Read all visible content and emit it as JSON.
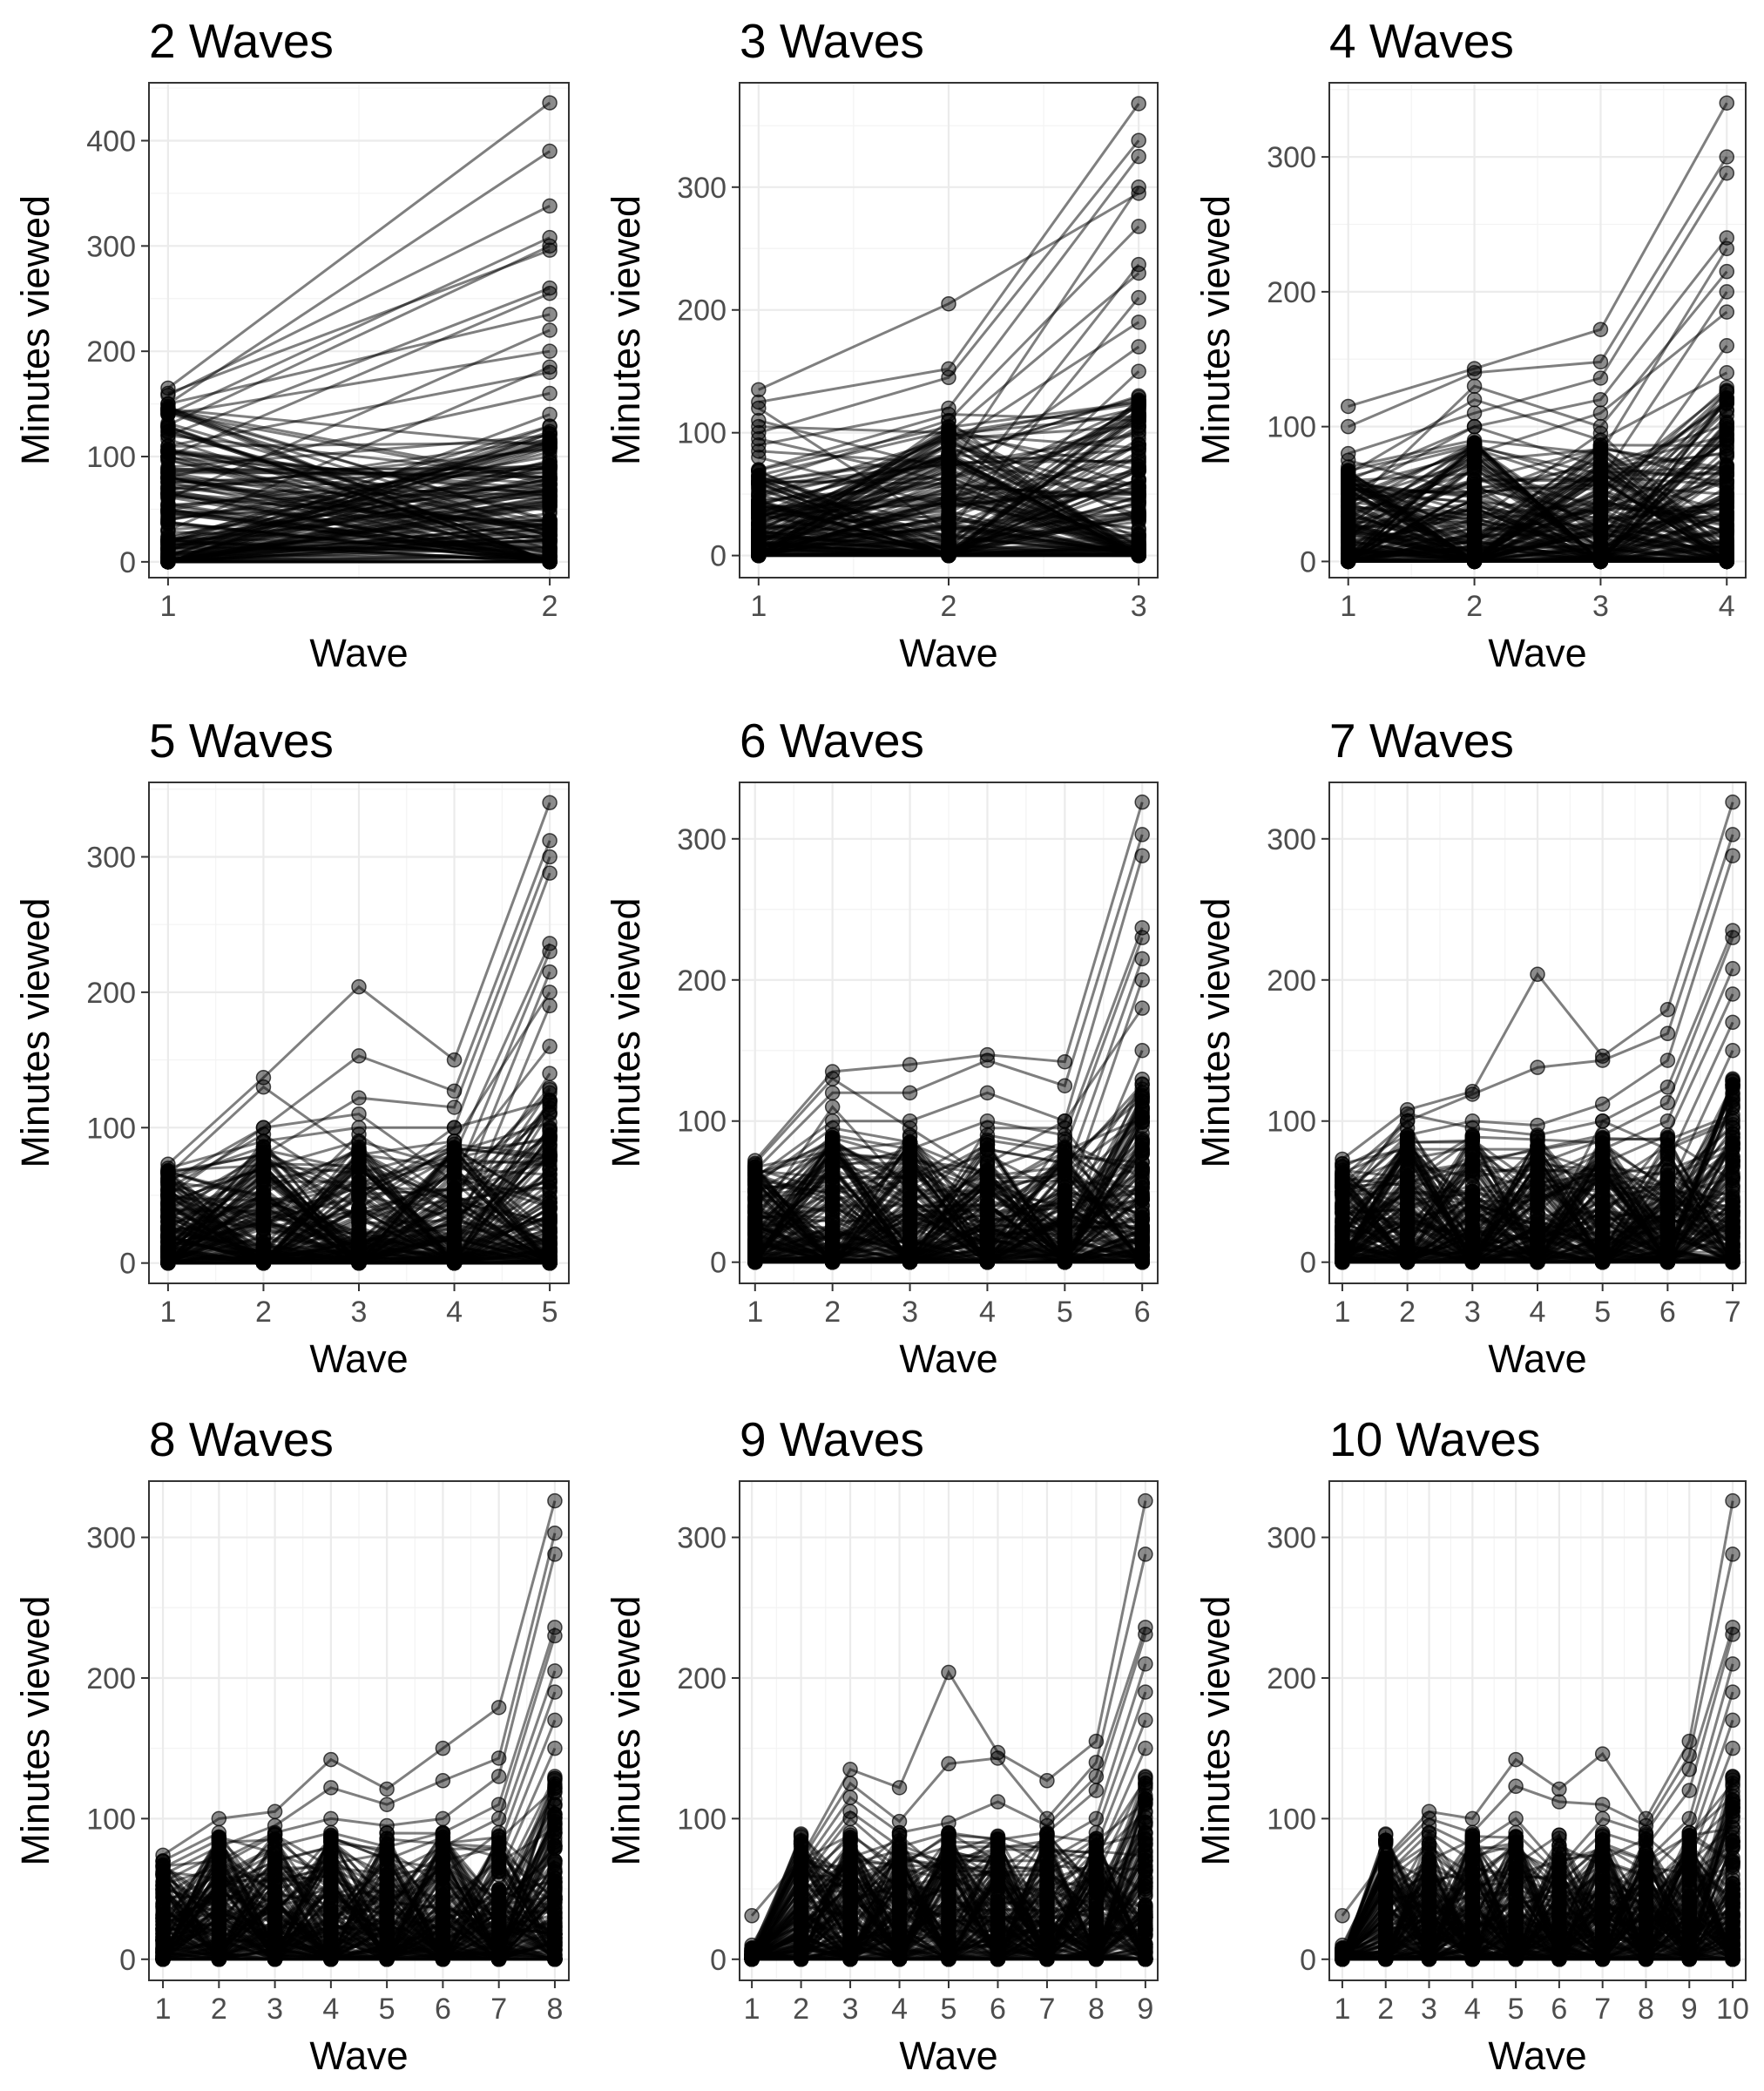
{
  "y_axis_label": "Minutes viewed",
  "x_axis_label": "Wave",
  "chart_data": [
    {
      "type": "line",
      "title": "2 Waves",
      "xlabel": "Wave",
      "ylabel": "Minutes viewed",
      "x": [
        1,
        2
      ],
      "xlim": [
        0.95,
        2.05
      ],
      "ylim": [
        -15,
        455
      ],
      "y_ticks": [
        0,
        100,
        200,
        300,
        400
      ],
      "grid": true,
      "series_peak_values": [
        [
          165,
          436
        ],
        [
          150,
          390
        ],
        [
          158,
          338
        ],
        [
          140,
          308
        ],
        [
          130,
          300
        ],
        [
          160,
          296
        ],
        [
          120,
          260
        ],
        [
          100,
          255
        ],
        [
          150,
          235
        ],
        [
          60,
          220
        ],
        [
          140,
          200
        ],
        [
          30,
          185
        ],
        [
          110,
          180
        ],
        [
          80,
          160
        ],
        [
          5,
          140
        ],
        [
          90,
          120
        ],
        [
          40,
          100
        ],
        [
          120,
          80
        ],
        [
          70,
          60
        ],
        [
          20,
          40
        ],
        [
          100,
          20
        ],
        [
          50,
          5
        ],
        [
          0,
          90
        ],
        [
          145,
          110
        ]
      ]
    },
    {
      "type": "line",
      "title": "3 Waves",
      "xlabel": "Wave",
      "ylabel": "Minutes viewed",
      "x": [
        1,
        2,
        3
      ],
      "xlim": [
        0.9,
        3.1
      ],
      "ylim": [
        -18,
        385
      ],
      "y_ticks": [
        0,
        100,
        200,
        300
      ],
      "grid": true,
      "series_peak_values": [
        [
          135,
          205,
          295
        ],
        [
          125,
          152,
          368
        ],
        [
          100,
          145,
          338
        ],
        [
          90,
          120,
          325
        ],
        [
          110,
          70,
          300
        ],
        [
          60,
          110,
          268
        ],
        [
          80,
          40,
          237
        ],
        [
          30,
          100,
          230
        ],
        [
          120,
          20,
          210
        ],
        [
          20,
          90,
          190
        ],
        [
          95,
          60,
          170
        ],
        [
          50,
          5,
          150
        ],
        [
          0,
          80,
          130
        ],
        [
          70,
          115,
          110
        ],
        [
          40,
          30,
          90
        ],
        [
          105,
          100,
          70
        ],
        [
          15,
          55,
          50
        ],
        [
          65,
          10,
          30
        ],
        [
          85,
          75,
          10
        ],
        [
          5,
          0,
          0
        ]
      ]
    },
    {
      "type": "line",
      "title": "4 Waves",
      "xlabel": "Wave",
      "ylabel": "Minutes viewed",
      "x": [
        1,
        2,
        3,
        4
      ],
      "xlim": [
        0.85,
        4.15
      ],
      "ylim": [
        -12,
        355
      ],
      "y_ticks": [
        0,
        100,
        200,
        300
      ],
      "grid": true,
      "series_peak_values": [
        [
          115,
          143,
          172,
          340
        ],
        [
          100,
          140,
          148,
          300
        ],
        [
          80,
          110,
          136,
          288
        ],
        [
          60,
          100,
          120,
          240
        ],
        [
          70,
          90,
          80,
          232
        ],
        [
          40,
          130,
          100,
          215
        ],
        [
          20,
          60,
          60,
          200
        ],
        [
          55,
          80,
          110,
          185
        ],
        [
          10,
          40,
          30,
          160
        ],
        [
          65,
          120,
          90,
          140
        ],
        [
          30,
          20,
          50,
          120
        ],
        [
          0,
          70,
          10,
          100
        ],
        [
          50,
          100,
          70,
          80
        ],
        [
          5,
          10,
          40,
          60
        ],
        [
          75,
          50,
          20,
          40
        ],
        [
          45,
          85,
          65,
          20
        ],
        [
          25,
          30,
          95,
          5
        ],
        [
          60,
          65,
          5,
          0
        ]
      ]
    },
    {
      "type": "line",
      "title": "5 Waves",
      "xlabel": "Wave",
      "ylabel": "Minutes viewed",
      "x": [
        1,
        2,
        3,
        4,
        5
      ],
      "xlim": [
        0.8,
        5.2
      ],
      "ylim": [
        -15,
        355
      ],
      "y_ticks": [
        0,
        100,
        200,
        300
      ],
      "grid": true,
      "series_peak_values": [
        [
          73,
          137,
          204,
          150,
          340
        ],
        [
          60,
          100,
          153,
          127,
          312
        ],
        [
          40,
          80,
          122,
          115,
          300
        ],
        [
          70,
          90,
          100,
          100,
          288
        ],
        [
          10,
          60,
          60,
          80,
          236
        ],
        [
          50,
          100,
          110,
          60,
          230
        ],
        [
          30,
          40,
          20,
          40,
          215
        ],
        [
          65,
          130,
          80,
          90,
          200
        ],
        [
          0,
          20,
          40,
          20,
          190
        ],
        [
          45,
          70,
          90,
          70,
          160
        ],
        [
          20,
          50,
          10,
          30,
          140
        ],
        [
          55,
          95,
          50,
          100,
          120
        ],
        [
          35,
          10,
          70,
          10,
          100
        ],
        [
          5,
          85,
          30,
          55,
          80
        ],
        [
          62,
          25,
          95,
          45,
          60
        ],
        [
          15,
          65,
          5,
          85,
          40
        ],
        [
          68,
          45,
          60,
          5,
          20
        ],
        [
          25,
          5,
          35,
          65,
          5
        ]
      ]
    },
    {
      "type": "line",
      "title": "6 Waves",
      "xlabel": "Wave",
      "ylabel": "Minutes viewed",
      "x": [
        1,
        2,
        3,
        4,
        5,
        6
      ],
      "xlim": [
        0.8,
        6.2
      ],
      "ylim": [
        -15,
        340
      ],
      "y_ticks": [
        0,
        100,
        200,
        300
      ],
      "grid": true,
      "series_peak_values": [
        [
          72,
          135,
          140,
          147,
          142,
          326
        ],
        [
          65,
          120,
          120,
          143,
          125,
          303
        ],
        [
          60,
          100,
          100,
          120,
          100,
          288
        ],
        [
          40,
          90,
          80,
          100,
          90,
          237
        ],
        [
          20,
          60,
          60,
          90,
          80,
          230
        ],
        [
          70,
          130,
          95,
          60,
          60,
          215
        ],
        [
          0,
          40,
          40,
          40,
          40,
          200
        ],
        [
          50,
          80,
          20,
          70,
          100,
          180
        ],
        [
          10,
          20,
          90,
          20,
          20,
          150
        ],
        [
          30,
          110,
          50,
          80,
          70,
          120
        ],
        [
          66,
          50,
          10,
          10,
          50,
          100
        ],
        [
          45,
          70,
          70,
          50,
          10,
          80
        ],
        [
          5,
          10,
          30,
          65,
          85,
          60
        ],
        [
          55,
          95,
          85,
          30,
          30,
          40
        ],
        [
          25,
          30,
          5,
          95,
          95,
          20
        ],
        [
          62,
          85,
          45,
          5,
          5,
          5
        ]
      ]
    },
    {
      "type": "line",
      "title": "7 Waves",
      "xlabel": "Wave",
      "ylabel": "Minutes viewed",
      "x": [
        1,
        2,
        3,
        4,
        5,
        6,
        7
      ],
      "xlim": [
        0.8,
        7.2
      ],
      "ylim": [
        -15,
        340
      ],
      "y_ticks": [
        0,
        100,
        200,
        300
      ],
      "grid": true,
      "series_peak_values": [
        [
          73,
          108,
          121,
          204,
          146,
          179,
          326
        ],
        [
          60,
          100,
          119,
          138,
          143,
          162,
          303
        ],
        [
          45,
          90,
          100,
          97,
          112,
          143,
          288
        ],
        [
          40,
          105,
          95,
          90,
          100,
          124,
          235
        ],
        [
          20,
          80,
          80,
          80,
          90,
          113,
          230
        ],
        [
          65,
          60,
          70,
          60,
          80,
          100,
          208
        ],
        [
          10,
          40,
          50,
          40,
          70,
          90,
          190
        ],
        [
          55,
          95,
          30,
          50,
          60,
          70,
          170
        ],
        [
          0,
          20,
          90,
          20,
          40,
          50,
          150
        ],
        [
          30,
          70,
          60,
          70,
          20,
          30,
          120
        ],
        [
          50,
          100,
          10,
          10,
          100,
          80,
          100
        ],
        [
          5,
          50,
          40,
          30,
          10,
          60,
          80
        ],
        [
          62,
          30,
          20,
          55,
          50,
          10,
          60
        ],
        [
          25,
          85,
          85,
          5,
          30,
          40,
          40
        ],
        [
          68,
          10,
          5,
          35,
          5,
          20,
          20
        ],
        [
          15,
          5,
          65,
          65,
          65,
          5,
          5
        ]
      ]
    },
    {
      "type": "line",
      "title": "8 Waves",
      "xlabel": "Wave",
      "ylabel": "Minutes viewed",
      "x": [
        1,
        2,
        3,
        4,
        5,
        6,
        7,
        8
      ],
      "xlim": [
        0.75,
        8.25
      ],
      "ylim": [
        -15,
        340
      ],
      "y_ticks": [
        0,
        100,
        200,
        300
      ],
      "grid": true,
      "series_peak_values": [
        [
          74,
          100,
          105,
          142,
          121,
          150,
          179,
          326
        ],
        [
          60,
          80,
          95,
          122,
          110,
          127,
          143,
          303
        ],
        [
          45,
          70,
          90,
          100,
          95,
          100,
          130,
          288
        ],
        [
          40,
          60,
          80,
          90,
          80,
          90,
          110,
          236
        ],
        [
          20,
          50,
          70,
          80,
          60,
          80,
          100,
          230
        ],
        [
          10,
          40,
          60,
          70,
          50,
          60,
          90,
          205
        ],
        [
          65,
          85,
          50,
          60,
          40,
          70,
          80,
          190
        ],
        [
          0,
          30,
          40,
          50,
          30,
          40,
          70,
          170
        ],
        [
          55,
          75,
          20,
          40,
          20,
          30,
          60,
          150
        ],
        [
          30,
          20,
          85,
          30,
          10,
          20,
          50,
          130
        ],
        [
          70,
          90,
          30,
          10,
          65,
          10,
          40,
          110
        ],
        [
          5,
          60,
          10,
          20,
          5,
          50,
          30,
          90
        ],
        [
          50,
          10,
          65,
          65,
          45,
          5,
          20,
          70
        ],
        [
          25,
          45,
          5,
          5,
          25,
          35,
          10,
          50
        ],
        [
          62,
          25,
          45,
          45,
          60,
          65,
          5,
          30
        ],
        [
          15,
          5,
          25,
          25,
          15,
          15,
          65,
          10
        ]
      ]
    },
    {
      "type": "line",
      "title": "9 Waves",
      "xlabel": "Wave",
      "ylabel": "Minutes viewed",
      "x": [
        1,
        2,
        3,
        4,
        5,
        6,
        7,
        8,
        9
      ],
      "xlim": [
        0.75,
        9.25
      ],
      "ylim": [
        -15,
        340
      ],
      "y_ticks": [
        0,
        100,
        200,
        300
      ],
      "grid": true,
      "series_peak_values": [
        [
          31,
          72,
          135,
          122,
          204,
          147,
          127,
          155,
          326
        ],
        [
          10,
          70,
          125,
          98,
          139,
          143,
          100,
          140,
          288
        ],
        [
          5,
          65,
          115,
          90,
          97,
          112,
          95,
          130,
          236
        ],
        [
          0,
          60,
          105,
          80,
          90,
          85,
          90,
          120,
          231
        ],
        [
          0,
          55,
          100,
          70,
          80,
          80,
          80,
          100,
          210
        ],
        [
          0,
          50,
          90,
          60,
          70,
          70,
          70,
          90,
          190
        ],
        [
          0,
          45,
          80,
          50,
          60,
          60,
          60,
          80,
          170
        ],
        [
          0,
          40,
          70,
          40,
          50,
          50,
          50,
          70,
          150
        ],
        [
          0,
          30,
          60,
          30,
          40,
          40,
          40,
          60,
          130
        ],
        [
          0,
          20,
          50,
          20,
          30,
          30,
          30,
          50,
          110
        ],
        [
          0,
          10,
          40,
          10,
          20,
          20,
          20,
          40,
          90
        ],
        [
          0,
          5,
          30,
          5,
          10,
          10,
          10,
          30,
          70
        ],
        [
          0,
          68,
          20,
          65,
          5,
          5,
          5,
          20,
          50
        ],
        [
          0,
          35,
          10,
          35,
          65,
          65,
          65,
          10,
          30
        ],
        [
          0,
          15,
          5,
          15,
          35,
          35,
          35,
          5,
          10
        ]
      ]
    },
    {
      "type": "line",
      "title": "10 Waves",
      "xlabel": "Wave",
      "ylabel": "Minutes viewed",
      "x": [
        1,
        2,
        3,
        4,
        5,
        6,
        7,
        8,
        9,
        10
      ],
      "xlim": [
        0.7,
        10.3
      ],
      "ylim": [
        -15,
        340
      ],
      "y_ticks": [
        0,
        100,
        200,
        300
      ],
      "grid": true,
      "series_peak_values": [
        [
          31,
          72,
          105,
          100,
          142,
          121,
          146,
          100,
          155,
          326
        ],
        [
          10,
          70,
          100,
          90,
          123,
          112,
          110,
          95,
          145,
          288
        ],
        [
          5,
          65,
          95,
          80,
          100,
          65,
          100,
          90,
          135,
          236
        ],
        [
          0,
          60,
          90,
          70,
          90,
          60,
          90,
          80,
          120,
          231
        ],
        [
          0,
          55,
          80,
          60,
          80,
          55,
          80,
          70,
          100,
          210
        ],
        [
          0,
          50,
          70,
          50,
          70,
          50,
          70,
          60,
          90,
          190
        ],
        [
          0,
          45,
          60,
          40,
          60,
          45,
          60,
          50,
          80,
          170
        ],
        [
          0,
          40,
          50,
          30,
          50,
          40,
          50,
          40,
          70,
          150
        ],
        [
          0,
          30,
          40,
          20,
          40,
          30,
          40,
          30,
          60,
          130
        ],
        [
          0,
          20,
          30,
          10,
          30,
          20,
          30,
          20,
          50,
          110
        ],
        [
          0,
          10,
          20,
          5,
          20,
          10,
          20,
          10,
          40,
          90
        ],
        [
          0,
          5,
          10,
          65,
          10,
          5,
          10,
          5,
          30,
          70
        ],
        [
          0,
          68,
          5,
          35,
          5,
          62,
          5,
          65,
          20,
          50
        ],
        [
          0,
          35,
          65,
          15,
          65,
          35,
          65,
          35,
          10,
          30
        ],
        [
          0,
          15,
          35,
          45,
          35,
          15,
          35,
          15,
          5,
          10
        ]
      ]
    }
  ]
}
